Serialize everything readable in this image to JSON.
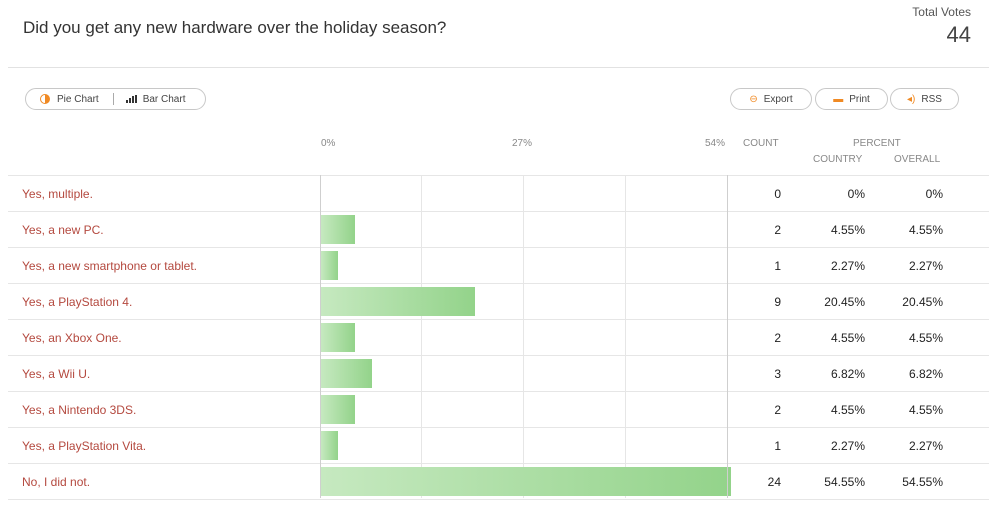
{
  "poll": {
    "question": "Did you get any new hardware over the holiday season?",
    "total_label": "Total Votes",
    "total_value": "44"
  },
  "toolbar": {
    "pie_label": "Pie Chart",
    "bar_label": "Bar Chart",
    "export_label": "Export",
    "print_label": "Print",
    "rss_label": "RSS"
  },
  "headers": {
    "axis_min": "0%",
    "axis_mid": "27%",
    "axis_max": "54%",
    "count": "COUNT",
    "percent": "PERCENT",
    "country": "COUNTRY",
    "overall": "OVERALL"
  },
  "colors": {
    "label": "#b4493f",
    "accent": "#f08a24",
    "bar": "#93d38a"
  },
  "chart_data": {
    "type": "bar",
    "orientation": "horizontal",
    "categories": [
      "Yes, multiple.",
      "Yes, a new PC.",
      "Yes, a new smartphone or tablet.",
      "Yes, a PlayStation 4.",
      "Yes, an Xbox One.",
      "Yes, a Wii U.",
      "Yes, a Nintendo 3DS.",
      "Yes, a PlayStation Vita.",
      "No, I did not."
    ],
    "values": [
      0,
      4.55,
      2.27,
      20.45,
      4.55,
      6.82,
      4.55,
      2.27,
      54.55
    ],
    "xlim": [
      0,
      54
    ],
    "ticks": [
      "0%",
      "27%",
      "54%"
    ]
  },
  "rows": [
    {
      "label": "Yes, multiple.",
      "count": "0",
      "country": "0%",
      "overall": "0%"
    },
    {
      "label": "Yes, a new PC.",
      "count": "2",
      "country": "4.55%",
      "overall": "4.55%"
    },
    {
      "label": "Yes, a new smartphone or tablet.",
      "count": "1",
      "country": "2.27%",
      "overall": "2.27%"
    },
    {
      "label": "Yes, a PlayStation 4.",
      "count": "9",
      "country": "20.45%",
      "overall": "20.45%"
    },
    {
      "label": "Yes, an Xbox One.",
      "count": "2",
      "country": "4.55%",
      "overall": "4.55%"
    },
    {
      "label": "Yes, a Wii U.",
      "count": "3",
      "country": "6.82%",
      "overall": "6.82%"
    },
    {
      "label": "Yes, a Nintendo 3DS.",
      "count": "2",
      "country": "4.55%",
      "overall": "4.55%"
    },
    {
      "label": "Yes, a PlayStation Vita.",
      "count": "1",
      "country": "2.27%",
      "overall": "2.27%"
    },
    {
      "label": "No, I did not.",
      "count": "24",
      "country": "54.55%",
      "overall": "54.55%"
    }
  ]
}
